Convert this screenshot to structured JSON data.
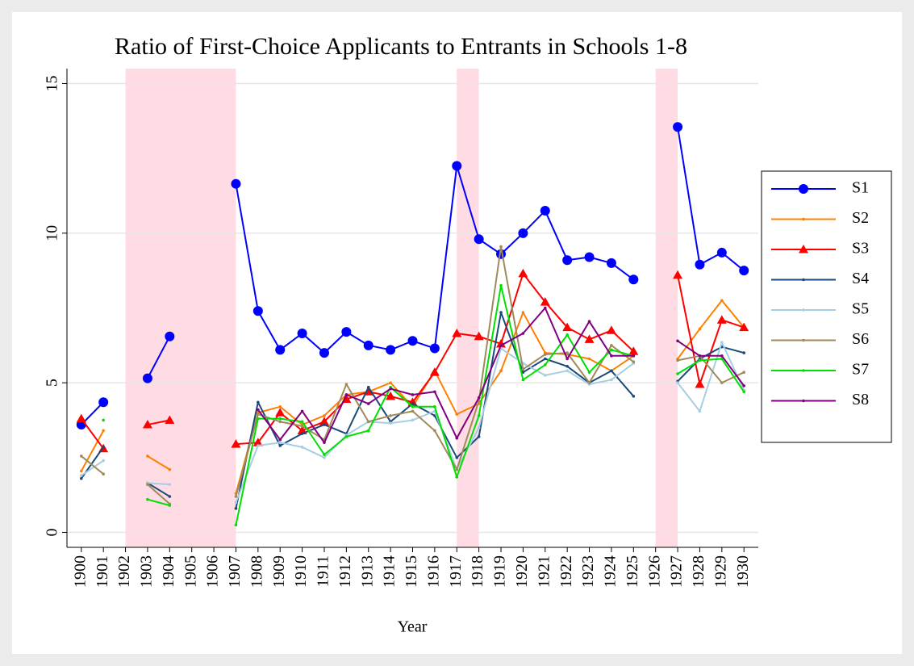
{
  "chart_data": {
    "type": "line",
    "title": "Ratio of First-Choice Applicants to Entrants in Schools 1-8",
    "x_label": "Year",
    "x": [
      1900,
      1901,
      1902,
      1903,
      1904,
      1905,
      1906,
      1907,
      1908,
      1909,
      1910,
      1911,
      1912,
      1913,
      1914,
      1915,
      1916,
      1917,
      1918,
      1919,
      1920,
      1921,
      1922,
      1923,
      1924,
      1925,
      1926,
      1927,
      1928,
      1929,
      1930
    ],
    "xlim": [
      1899.35,
      1930.65
    ],
    "xticks": [
      1900,
      1901,
      1902,
      1903,
      1904,
      1905,
      1906,
      1907,
      1908,
      1909,
      1910,
      1911,
      1912,
      1913,
      1914,
      1915,
      1916,
      1917,
      1918,
      1919,
      1920,
      1921,
      1922,
      1923,
      1924,
      1925,
      1926,
      1927,
      1928,
      1929,
      1930
    ],
    "ylim": [
      -0.5,
      15.5
    ],
    "yticks": [
      0,
      5,
      10,
      15
    ],
    "grid": true,
    "legend": "right",
    "shaded": [
      [
        1902,
        1907
      ],
      [
        1917,
        1918
      ],
      [
        1926,
        1927
      ]
    ],
    "shade_color": "#ffdbe4",
    "series": [
      {
        "name": "S1",
        "color": "#0000ff",
        "marker": "circle",
        "values": [
          3.6,
          4.35,
          null,
          5.15,
          6.55,
          null,
          null,
          11.65,
          7.4,
          6.1,
          6.65,
          6.0,
          6.7,
          6.25,
          6.1,
          6.4,
          6.15,
          12.25,
          9.8,
          9.3,
          10.0,
          10.75,
          9.1,
          9.2,
          9.0,
          8.45,
          null,
          13.55,
          8.95,
          9.35,
          8.75
        ]
      },
      {
        "name": "S2",
        "color": "#ff8000",
        "marker": "dot",
        "values": [
          2.05,
          3.4,
          null,
          2.55,
          2.1,
          null,
          null,
          1.3,
          4.0,
          4.2,
          3.6,
          3.9,
          4.6,
          4.7,
          5.0,
          4.2,
          5.4,
          3.95,
          4.3,
          5.4,
          7.35,
          6.0,
          5.95,
          5.8,
          5.4,
          5.9,
          null,
          5.8,
          6.8,
          7.75,
          6.85
        ]
      },
      {
        "name": "S3",
        "color": "#ff0000",
        "marker": "triangle",
        "values": [
          3.8,
          2.8,
          null,
          3.6,
          3.75,
          null,
          null,
          2.95,
          3.0,
          4.0,
          3.4,
          3.7,
          4.45,
          4.7,
          4.55,
          4.35,
          5.35,
          6.65,
          6.55,
          6.3,
          8.65,
          7.7,
          6.85,
          6.45,
          6.75,
          6.05,
          null,
          8.6,
          4.95,
          7.1,
          6.85
        ]
      },
      {
        "name": "S4",
        "color": "#1a4a7a",
        "marker": "dot",
        "values": [
          1.8,
          2.85,
          null,
          1.65,
          1.2,
          null,
          null,
          0.8,
          4.35,
          2.9,
          3.3,
          3.6,
          3.3,
          4.85,
          3.7,
          4.3,
          3.9,
          2.5,
          3.2,
          7.35,
          5.35,
          5.8,
          5.55,
          5.0,
          5.4,
          4.55,
          null,
          5.05,
          5.8,
          6.2,
          6.0
        ]
      },
      {
        "name": "S5",
        "color": "#a6cee3",
        "marker": "dot",
        "values": [
          1.9,
          2.4,
          null,
          1.65,
          1.6,
          null,
          null,
          1.0,
          2.9,
          3.0,
          2.85,
          2.5,
          3.25,
          3.7,
          3.65,
          3.75,
          4.05,
          2.1,
          3.5,
          6.15,
          5.65,
          5.25,
          5.4,
          4.95,
          5.1,
          5.65,
          null,
          5.0,
          4.05,
          6.35,
          4.75
        ]
      },
      {
        "name": "S6",
        "color": "#a08a5a",
        "marker": "dot",
        "values": [
          2.55,
          1.95,
          null,
          1.6,
          0.95,
          null,
          null,
          1.2,
          3.95,
          3.7,
          3.55,
          3.1,
          4.95,
          3.7,
          3.9,
          4.05,
          3.4,
          2.1,
          4.4,
          9.55,
          5.45,
          5.95,
          6.0,
          5.0,
          6.25,
          5.7,
          null,
          5.75,
          5.9,
          5.0,
          5.35
        ]
      },
      {
        "name": "S7",
        "color": "#00e000",
        "marker": "dot",
        "values": [
          null,
          3.75,
          null,
          1.1,
          0.9,
          null,
          null,
          0.25,
          3.8,
          3.8,
          3.7,
          2.6,
          3.2,
          3.4,
          4.85,
          4.2,
          4.2,
          1.85,
          3.9,
          8.25,
          5.1,
          5.6,
          6.6,
          5.35,
          6.1,
          5.9,
          null,
          5.3,
          5.75,
          5.8,
          4.7
        ]
      },
      {
        "name": "S8",
        "color": "#800080",
        "marker": "dot",
        "values": [
          null,
          null,
          null,
          null,
          null,
          null,
          null,
          null,
          4.1,
          3.1,
          4.05,
          3.0,
          4.6,
          4.3,
          4.8,
          4.6,
          4.7,
          3.15,
          4.5,
          6.25,
          6.65,
          7.5,
          5.8,
          7.05,
          5.9,
          5.9,
          null,
          6.4,
          5.9,
          5.9,
          4.9
        ]
      }
    ]
  }
}
